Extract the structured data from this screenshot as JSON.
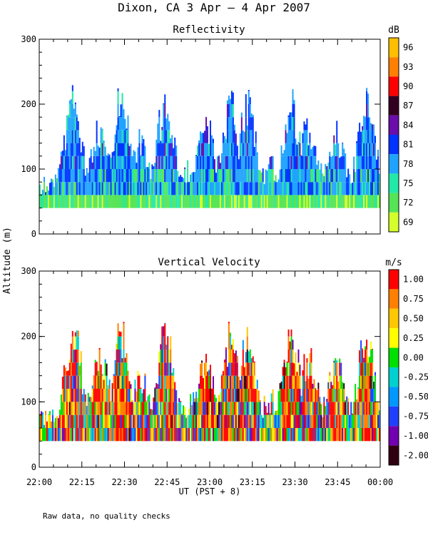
{
  "header": {
    "title": "Dixon, CA  3 Apr —  4 Apr 2007"
  },
  "footer": {
    "note": "Raw data, no quality checks"
  },
  "ylabel": "Altitude (m)",
  "xlabel": "UT  (PST + 8)",
  "chart_data": [
    {
      "type": "heatmap",
      "title": "Reflectivity",
      "ylim": [
        0,
        300
      ],
      "yticks": [
        "0",
        "100",
        "200",
        "300"
      ],
      "xlim": [
        "22:00",
        "00:00"
      ],
      "colorbar": {
        "unit": "dB",
        "labels": [
          "96",
          "93",
          "90",
          "87",
          "84",
          "81",
          "78",
          "75",
          "72",
          "69"
        ],
        "colors": [
          "#ffbf00",
          "#ff8000",
          "#ff0000",
          "#330022",
          "#6a0daa",
          "#0033ff",
          "#1fa3ff",
          "#22e8a8",
          "#55e455",
          "#d4ff2a"
        ]
      }
    },
    {
      "type": "heatmap",
      "title": "Vertical Velocity",
      "ylim": [
        0,
        300
      ],
      "yticks": [
        "0",
        "100",
        "200",
        "300"
      ],
      "xlim": [
        "22:00",
        "00:00"
      ],
      "xticks": [
        "22:00",
        "22:15",
        "22:30",
        "22:45",
        "23:00",
        "23:15",
        "23:30",
        "23:45",
        "00:00"
      ],
      "colorbar": {
        "unit": "m/s",
        "labels": [
          "1.00",
          "0.75",
          "0.50",
          "0.25",
          "0.00",
          "-0.25",
          "-0.50",
          "-0.75",
          "-1.00",
          "-2.00"
        ],
        "colors": [
          "#ff0000",
          "#ff8000",
          "#ffc800",
          "#ffff00",
          "#00e000",
          "#00d0d0",
          "#0098ff",
          "#2040ff",
          "#7000b0",
          "#300010"
        ]
      }
    }
  ]
}
